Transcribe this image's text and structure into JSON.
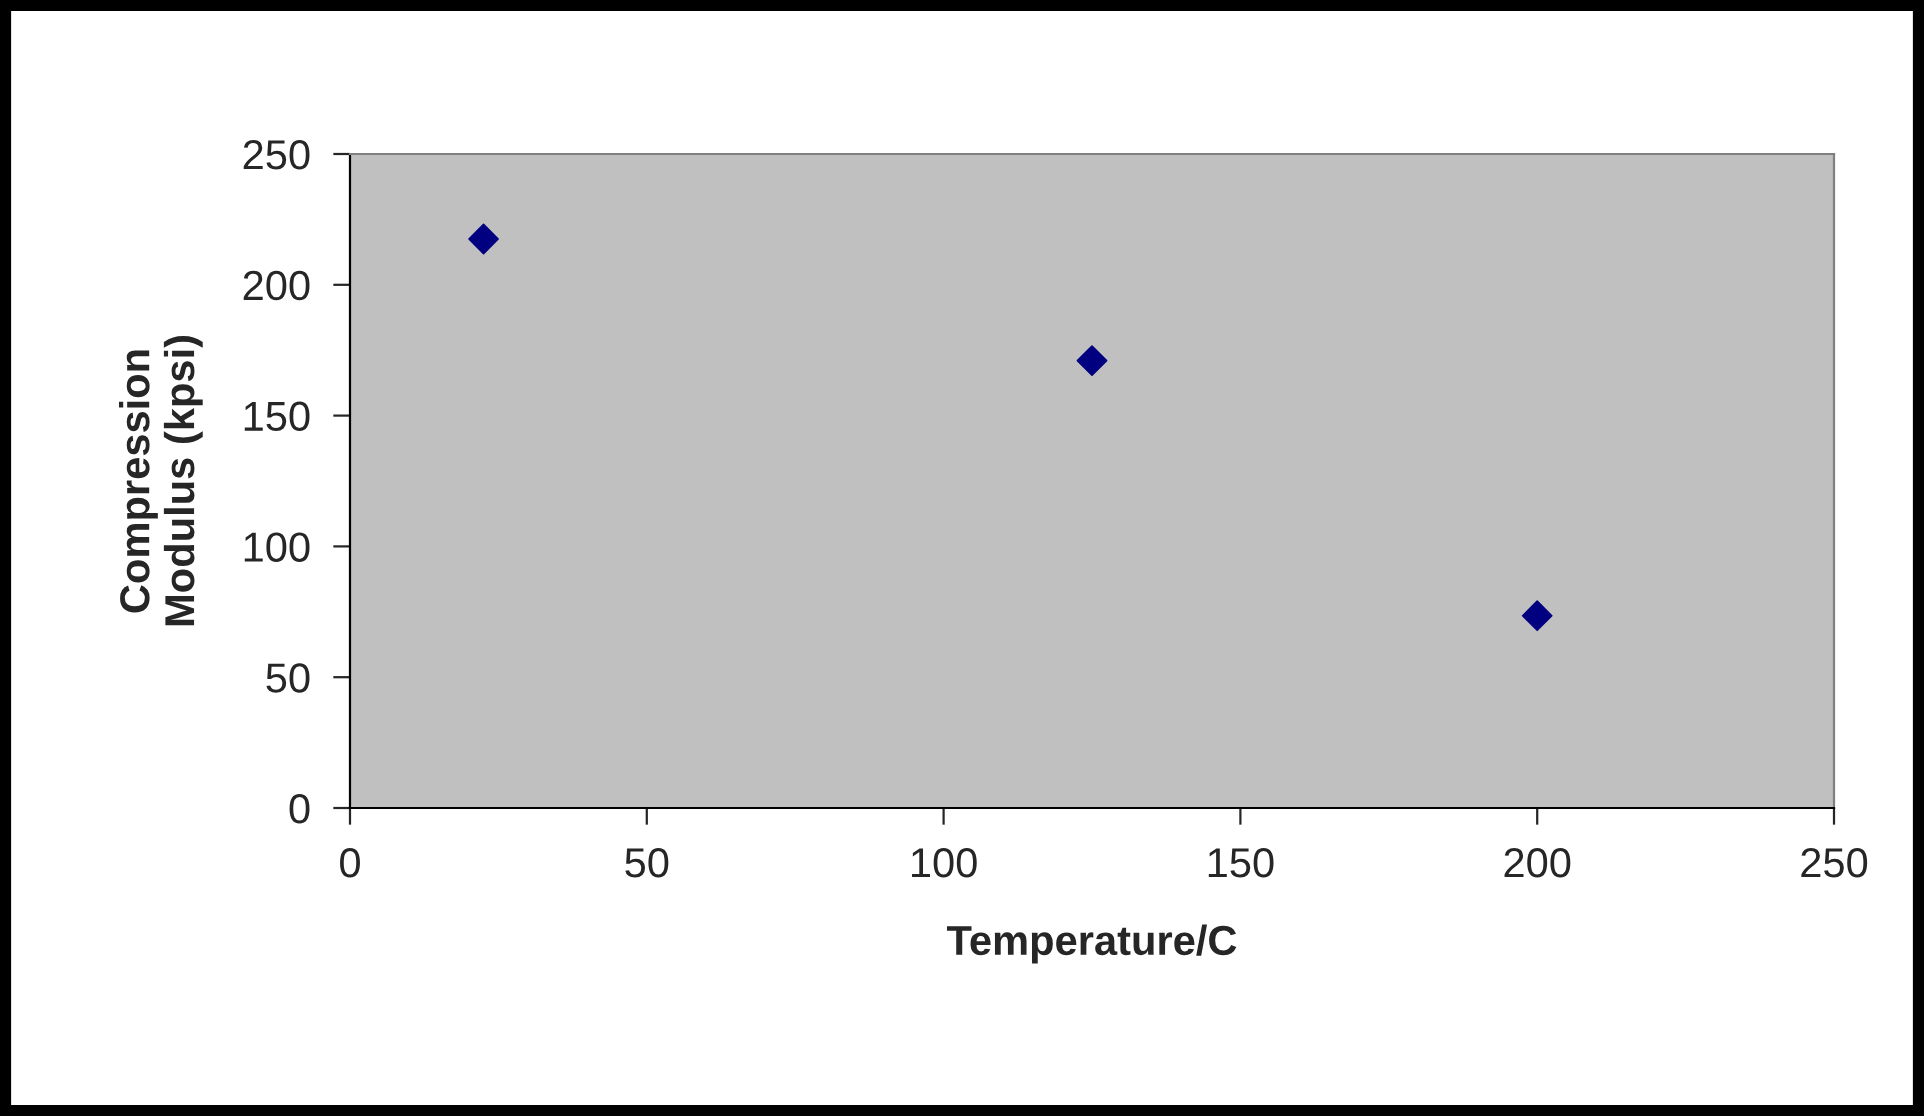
{
  "chart_data": {
    "type": "scatter",
    "xlabel": "Temperature/C",
    "ylabel": "Compression\nModulus (kpsi)",
    "x": [
      22.5,
      125,
      200
    ],
    "series": [
      {
        "color": "#000080",
        "values": [
          217.5,
          171,
          73.5
        ]
      }
    ],
    "marker": "diamond",
    "grid": false,
    "legend": false,
    "xlim": [
      0,
      250
    ],
    "xticks": [
      0,
      50,
      100,
      150,
      200,
      250
    ],
    "ylim": [
      0,
      250
    ],
    "yticks": [
      0,
      50,
      100,
      150,
      200,
      250
    ]
  }
}
